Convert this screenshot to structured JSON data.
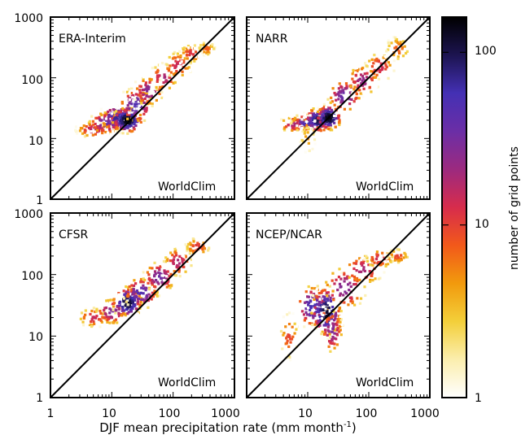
{
  "chart_data": {
    "type": "heatmap",
    "layout": "2x2 panels sharing axes, log-log scales, shared colorbar at right",
    "xlabel": "DJF mean precipitation rate (mm month",
    "xlabel_sup": "-1",
    "xlabel_close": ")",
    "xlim": [
      1,
      1000
    ],
    "ylim": [
      1,
      1000
    ],
    "x_scale": "log",
    "y_scale": "log",
    "xticks": [
      "1",
      "10",
      "100",
      "1000"
    ],
    "yticks": [
      "1",
      "10",
      "100",
      "1000"
    ],
    "reference_line": "1:1 diagonal (y = x)",
    "reference_dataset": "WorldClim",
    "colorbar": {
      "label": "number of grid points",
      "scale": "log",
      "range": [
        1,
        160
      ],
      "ticks": [
        "1",
        "10",
        "100"
      ],
      "colors": [
        "#ffffff",
        "#fbeeae",
        "#f3cf3a",
        "#f29a0d",
        "#f2591a",
        "#d72c4c",
        "#9c2a7f",
        "#6b2ea6",
        "#4430b4",
        "#1c1450",
        "#000000"
      ]
    },
    "panels": [
      {
        "name": "ERA-Interim",
        "ref_label": "WorldClim",
        "density": [
          {
            "x": 5,
            "y": 14,
            "count": 18,
            "spread_x": 0.17,
            "spread_y": 0.08
          },
          {
            "x": 8,
            "y": 18,
            "count": 40,
            "spread_x": 0.15,
            "spread_y": 0.1
          },
          {
            "x": 12,
            "y": 22,
            "count": 70,
            "spread_x": 0.14,
            "spread_y": 0.12
          },
          {
            "x": 18,
            "y": 20,
            "count": 160,
            "spread_x": 0.12,
            "spread_y": 0.1
          },
          {
            "x": 25,
            "y": 35,
            "count": 50,
            "spread_x": 0.15,
            "spread_y": 0.15
          },
          {
            "x": 40,
            "y": 60,
            "count": 30,
            "spread_x": 0.14,
            "spread_y": 0.14
          },
          {
            "x": 70,
            "y": 100,
            "count": 20,
            "spread_x": 0.14,
            "spread_y": 0.14
          },
          {
            "x": 120,
            "y": 160,
            "count": 15,
            "spread_x": 0.14,
            "spread_y": 0.14
          },
          {
            "x": 200,
            "y": 250,
            "count": 12,
            "spread_x": 0.13,
            "spread_y": 0.1
          },
          {
            "x": 350,
            "y": 300,
            "count": 8,
            "spread_x": 0.1,
            "spread_y": 0.08
          }
        ]
      },
      {
        "name": "NARR",
        "ref_label": "WorldClim",
        "density": [
          {
            "x": 6,
            "y": 17,
            "count": 20,
            "spread_x": 0.15,
            "spread_y": 0.08
          },
          {
            "x": 10,
            "y": 18,
            "count": 60,
            "spread_x": 0.14,
            "spread_y": 0.08
          },
          {
            "x": 15,
            "y": 20,
            "count": 110,
            "spread_x": 0.12,
            "spread_y": 0.1
          },
          {
            "x": 22,
            "y": 22,
            "count": 150,
            "spread_x": 0.1,
            "spread_y": 0.1
          },
          {
            "x": 10,
            "y": 10,
            "count": 5,
            "spread_x": 0.1,
            "spread_y": 0.18
          },
          {
            "x": 40,
            "y": 50,
            "count": 40,
            "spread_x": 0.15,
            "spread_y": 0.15
          },
          {
            "x": 80,
            "y": 90,
            "count": 25,
            "spread_x": 0.15,
            "spread_y": 0.15
          },
          {
            "x": 150,
            "y": 150,
            "count": 15,
            "spread_x": 0.15,
            "spread_y": 0.15
          },
          {
            "x": 300,
            "y": 300,
            "count": 8,
            "spread_x": 0.14,
            "spread_y": 0.14
          }
        ]
      },
      {
        "name": "CFSR",
        "ref_label": "WorldClim",
        "density": [
          {
            "x": 5,
            "y": 20,
            "count": 15,
            "spread_x": 0.15,
            "spread_y": 0.1
          },
          {
            "x": 10,
            "y": 25,
            "count": 30,
            "spread_x": 0.15,
            "spread_y": 0.12
          },
          {
            "x": 18,
            "y": 35,
            "count": 130,
            "spread_x": 0.12,
            "spread_y": 0.12
          },
          {
            "x": 30,
            "y": 50,
            "count": 50,
            "spread_x": 0.15,
            "spread_y": 0.14
          },
          {
            "x": 60,
            "y": 90,
            "count": 35,
            "spread_x": 0.15,
            "spread_y": 0.14
          },
          {
            "x": 120,
            "y": 160,
            "count": 20,
            "spread_x": 0.14,
            "spread_y": 0.14
          },
          {
            "x": 250,
            "y": 280,
            "count": 12,
            "spread_x": 0.13,
            "spread_y": 0.1
          }
        ]
      },
      {
        "name": "NCEP/NCAR",
        "ref_label": "WorldClim",
        "density": [
          {
            "x": 5,
            "y": 10,
            "count": 10,
            "spread_x": 0.1,
            "spread_y": 0.25
          },
          {
            "x": 12,
            "y": 30,
            "count": 60,
            "spread_x": 0.14,
            "spread_y": 0.18
          },
          {
            "x": 20,
            "y": 25,
            "count": 120,
            "spread_x": 0.12,
            "spread_y": 0.2
          },
          {
            "x": 25,
            "y": 12,
            "count": 30,
            "spread_x": 0.1,
            "spread_y": 0.2
          },
          {
            "x": 40,
            "y": 60,
            "count": 30,
            "spread_x": 0.2,
            "spread_y": 0.2
          },
          {
            "x": 80,
            "y": 120,
            "count": 20,
            "spread_x": 0.2,
            "spread_y": 0.15
          },
          {
            "x": 150,
            "y": 180,
            "count": 15,
            "spread_x": 0.15,
            "spread_y": 0.1
          },
          {
            "x": 300,
            "y": 200,
            "count": 10,
            "spread_x": 0.12,
            "spread_y": 0.08
          }
        ]
      }
    ]
  }
}
